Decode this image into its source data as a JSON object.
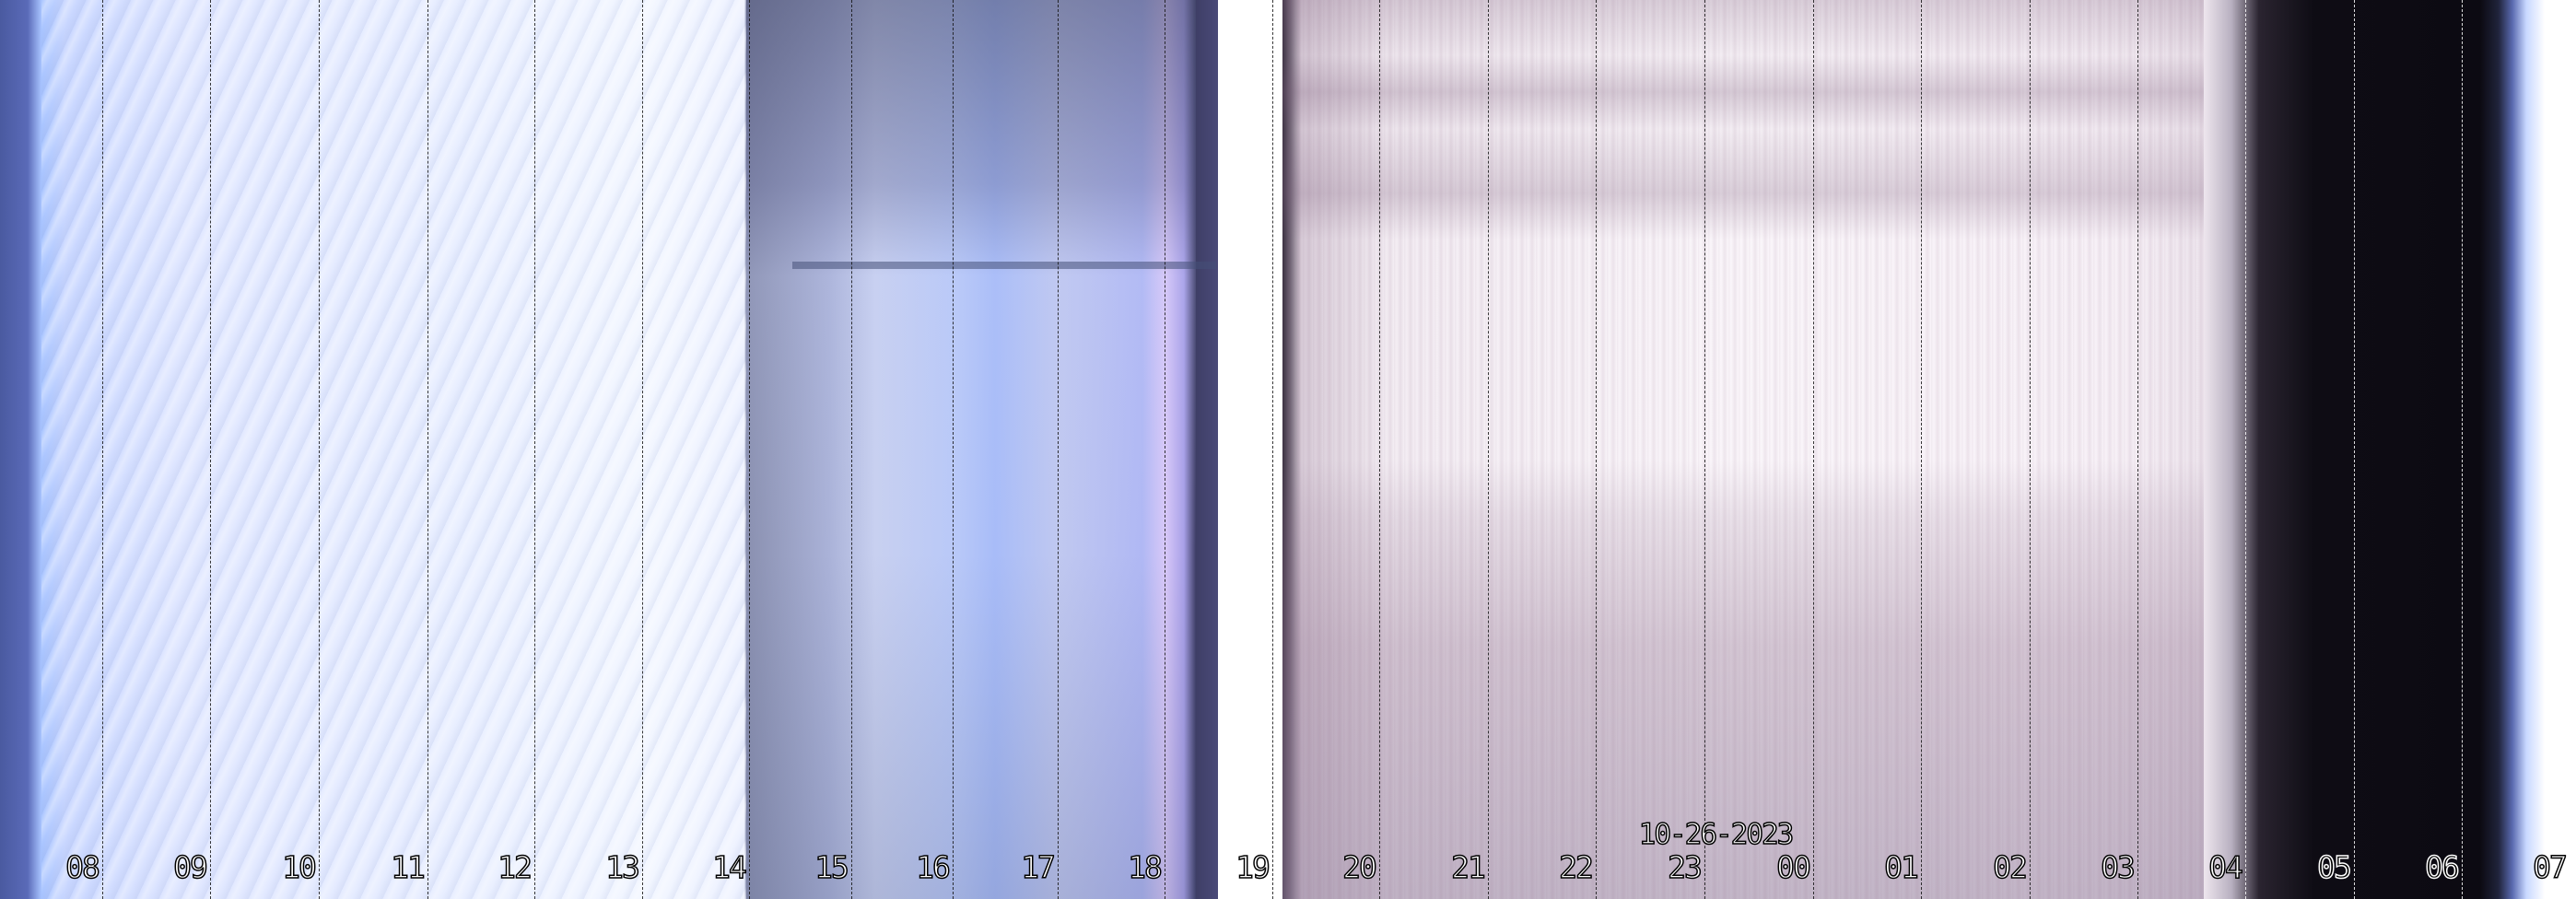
{
  "image": {
    "type": "keogram",
    "date_label": "10-26-2023",
    "hour_labels": [
      "08",
      "09",
      "10",
      "11",
      "12",
      "13",
      "14",
      "15",
      "16",
      "17",
      "18",
      "19",
      "20",
      "21",
      "22",
      "23",
      "00",
      "01",
      "02",
      "03",
      "04",
      "05",
      "06",
      "07"
    ],
    "colors": {
      "day_panel": "#dfe6ff",
      "night_panel": "#f4eef4",
      "dawn_dark": "#0c0a12",
      "label_fill": "#ffffff",
      "label_outline": "#000000"
    }
  }
}
